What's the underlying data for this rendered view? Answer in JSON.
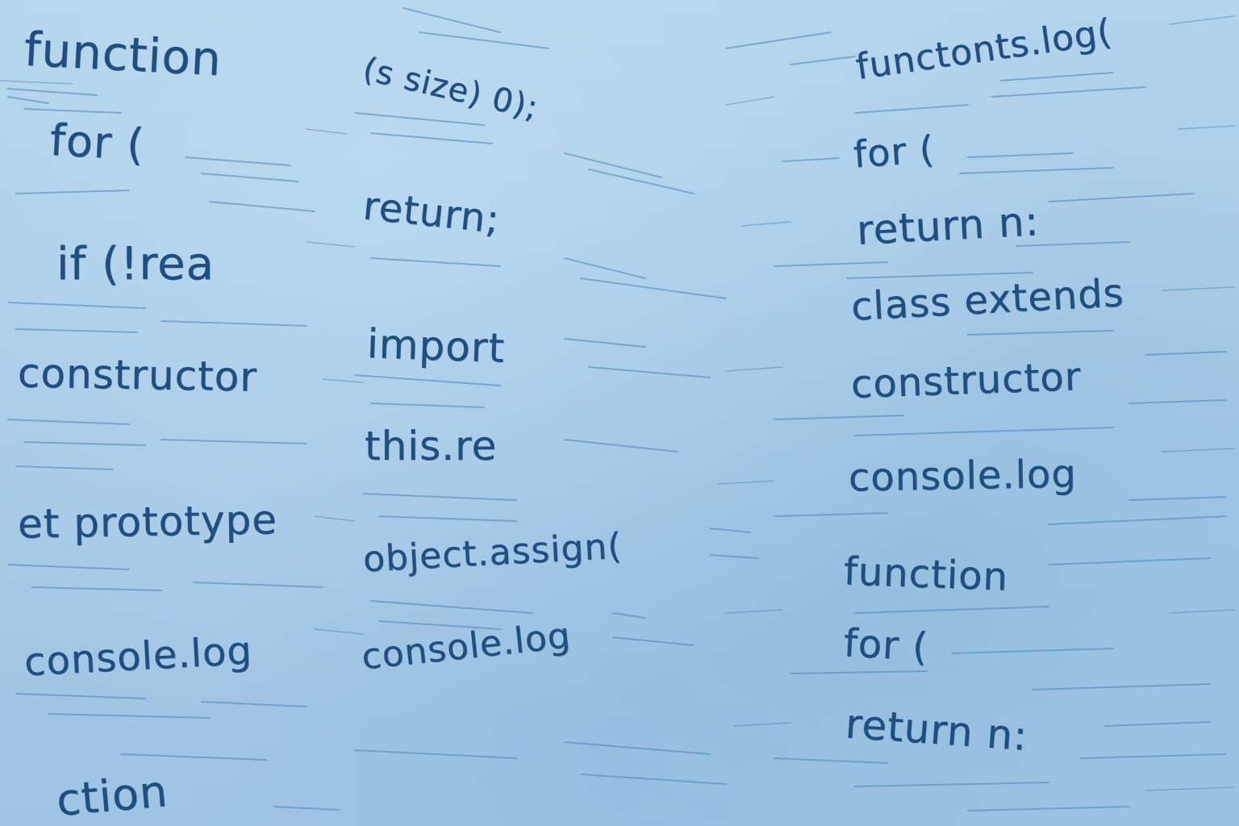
{
  "columns": [
    {
      "lines": [
        "function",
        "for (",
        "if (!rea",
        "constructor",
        "et prototype",
        "console.log",
        "ction"
      ]
    },
    {
      "lines": [
        "(s size) 0);",
        "return;",
        "import",
        "this.re",
        "object.assign(",
        "console.log"
      ]
    },
    {
      "lines": [
        "functonts.log(",
        "for (",
        "return n:",
        "class extends",
        "constructor",
        "console.log",
        "function",
        "for (",
        "return n:"
      ]
    }
  ],
  "colors": {
    "paper": "#a9cde8",
    "ink": "#1f4f80",
    "hatch": "#4f83b6"
  }
}
